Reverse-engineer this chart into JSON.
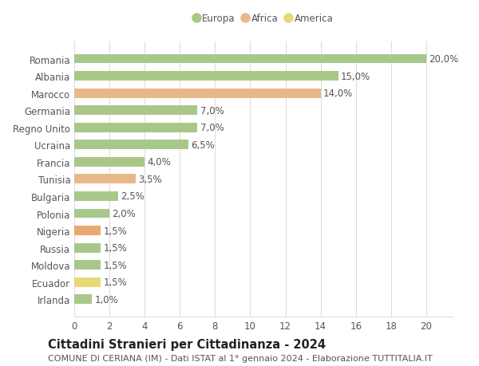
{
  "title": "Cittadini Stranieri per Cittadinanza - 2024",
  "subtitle": "COMUNE DI CERIANA (IM) - Dati ISTAT al 1° gennaio 2024 - Elaborazione TUTTITALIA.IT",
  "categories": [
    "Romania",
    "Albania",
    "Marocco",
    "Germania",
    "Regno Unito",
    "Ucraina",
    "Francia",
    "Tunisia",
    "Bulgaria",
    "Polonia",
    "Nigeria",
    "Russia",
    "Moldova",
    "Ecuador",
    "Irlanda"
  ],
  "values": [
    20.0,
    15.0,
    14.0,
    7.0,
    7.0,
    6.5,
    4.0,
    3.5,
    2.5,
    2.0,
    1.5,
    1.5,
    1.5,
    1.5,
    1.0
  ],
  "bar_colors": [
    "#a8c88a",
    "#a8c88a",
    "#e8b88a",
    "#a8c88a",
    "#a8c88a",
    "#a8c88a",
    "#a8c88a",
    "#e8b88a",
    "#a8c88a",
    "#a8c88a",
    "#e8a870",
    "#a8c88a",
    "#a8c88a",
    "#e8d878",
    "#a8c88a"
  ],
  "continent": [
    "Europa",
    "Europa",
    "Africa",
    "Europa",
    "Europa",
    "Europa",
    "Europa",
    "Africa",
    "Europa",
    "Europa",
    "Africa",
    "Europa",
    "Europa",
    "America",
    "Europa"
  ],
  "legend_labels": [
    "Europa",
    "Africa",
    "America"
  ],
  "legend_colors": [
    "#a8c88a",
    "#e8b88a",
    "#e8d878"
  ],
  "xlim": [
    0,
    21.5
  ],
  "xticks": [
    0,
    2,
    4,
    6,
    8,
    10,
    12,
    14,
    16,
    18,
    20
  ],
  "bg_color": "#ffffff",
  "grid_color": "#dddddd",
  "bar_height": 0.55,
  "label_fontsize": 8.5,
  "title_fontsize": 10.5,
  "subtitle_fontsize": 8.0,
  "tick_fontsize": 8.5
}
